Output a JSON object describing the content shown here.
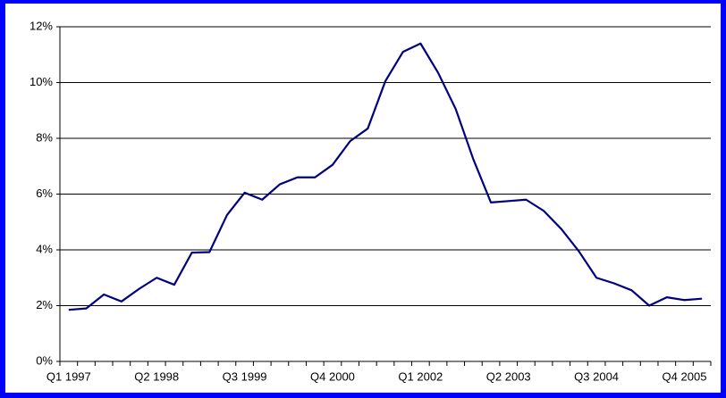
{
  "chart_data": {
    "type": "line",
    "categories": [
      "Q1 1997",
      null,
      null,
      null,
      null,
      "Q2 1998",
      null,
      null,
      null,
      null,
      "Q3 1999",
      null,
      null,
      null,
      null,
      "Q4 2000",
      null,
      null,
      null,
      null,
      "Q1 2002",
      null,
      null,
      null,
      null,
      "Q2 2003",
      null,
      null,
      null,
      null,
      "Q3 2004",
      null,
      null,
      null,
      null,
      "Q4 2005",
      null
    ],
    "values": [
      1.85,
      1.9,
      2.4,
      2.15,
      2.6,
      3.0,
      2.75,
      3.9,
      3.92,
      5.25,
      6.05,
      5.8,
      6.35,
      6.6,
      6.6,
      7.05,
      7.9,
      8.35,
      10.05,
      11.1,
      11.4,
      10.35,
      9.05,
      7.25,
      5.7,
      5.75,
      5.8,
      5.4,
      4.75,
      3.95,
      3.0,
      2.8,
      2.55,
      2.0,
      2.3,
      2.2,
      2.25
    ],
    "color": "#000080",
    "ylim": [
      0,
      12
    ],
    "yticks": [
      {
        "value": 0,
        "label": "0%"
      },
      {
        "value": 2,
        "label": "2%"
      },
      {
        "value": 4,
        "label": "4%"
      },
      {
        "value": 6,
        "label": "6%"
      },
      {
        "value": 8,
        "label": "8%"
      },
      {
        "value": 10,
        "label": "10%"
      },
      {
        "value": 12,
        "label": "12%"
      }
    ],
    "grid": true
  }
}
